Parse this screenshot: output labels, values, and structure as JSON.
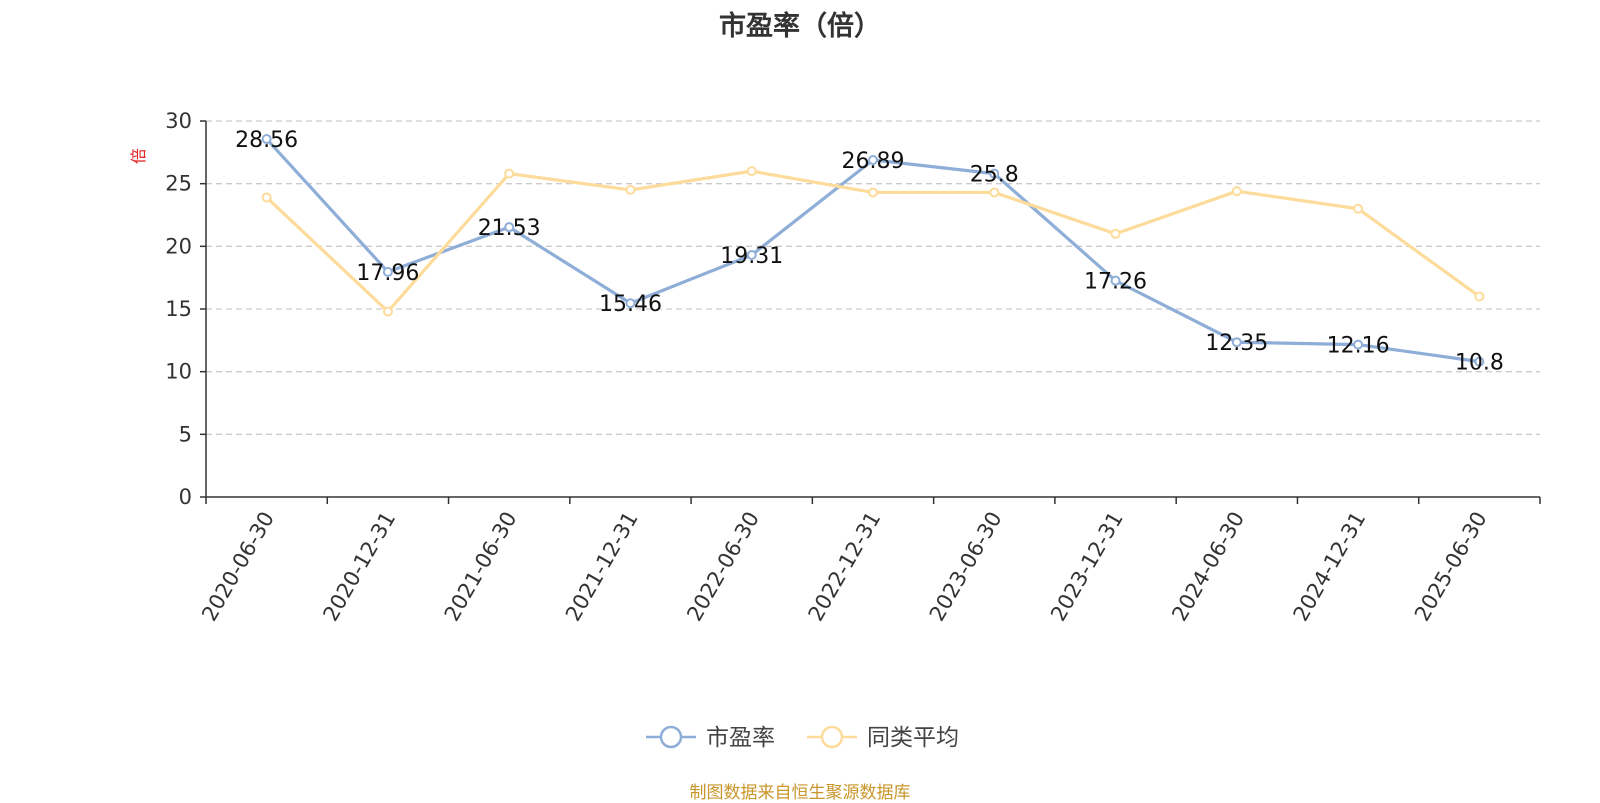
{
  "colors": {
    "series_1": "#8eaed8",
    "series_2": "#fddb9b",
    "axis": "#333333",
    "grid": "#cccccc",
    "unit": "#e02020",
    "source": "#c8962a"
  },
  "chart_data": {
    "type": "line",
    "title": "市盈率（倍）",
    "ylabel": "倍",
    "xlabel": "",
    "ylim": [
      0,
      30
    ],
    "yticks": [
      0,
      5,
      10,
      15,
      20,
      25,
      30
    ],
    "grid": true,
    "legend_position": "bottom",
    "categories": [
      "2020-06-30",
      "2020-12-31",
      "2021-06-30",
      "2021-12-31",
      "2022-06-30",
      "2022-12-31",
      "2023-06-30",
      "2023-12-31",
      "2024-06-30",
      "2024-12-31",
      "2025-06-30"
    ],
    "series": [
      {
        "name": "市盈率",
        "values": [
          28.56,
          17.96,
          21.53,
          15.46,
          19.31,
          26.89,
          25.8,
          17.26,
          12.35,
          12.16,
          10.8
        ],
        "labels": true
      },
      {
        "name": "同类平均",
        "values": [
          23.9,
          14.8,
          25.8,
          24.5,
          26.0,
          24.3,
          24.3,
          21.0,
          24.4,
          23.0,
          16.0
        ],
        "labels": false
      }
    ]
  },
  "source": "制图数据来自恒生聚源数据库"
}
